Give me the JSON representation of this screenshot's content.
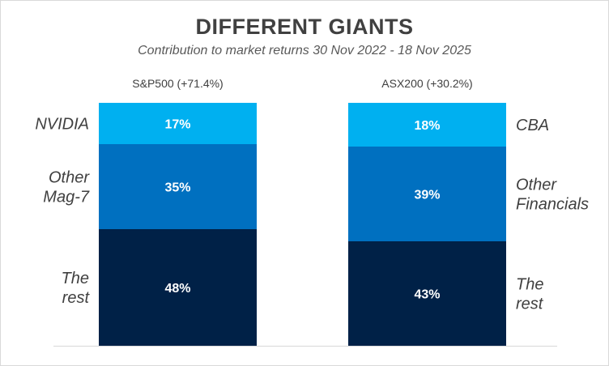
{
  "chart_data": {
    "type": "bar",
    "stacked": true,
    "percent": true,
    "title": "DIFFERENT GIANTS",
    "subtitle": "Contribution to market returns 30 Nov 2022 - 18 Nov 2025",
    "grid": false,
    "legend": "none",
    "bars": [
      {
        "label": "S&P500 (+71.4%)",
        "segments": [
          {
            "name": "NVIDIA",
            "name_lines": [
              "NVIDIA"
            ],
            "value": 17,
            "value_label": "17%",
            "color": "#00b0f0"
          },
          {
            "name": "Other Mag-7",
            "name_lines": [
              "Other",
              "Mag-7"
            ],
            "value": 35,
            "value_label": "35%",
            "color": "#0070c0"
          },
          {
            "name": "The rest",
            "name_lines": [
              "The",
              "rest"
            ],
            "value": 48,
            "value_label": "48%",
            "color": "#002147"
          }
        ]
      },
      {
        "label": "ASX200 (+30.2%)",
        "segments": [
          {
            "name": "CBA",
            "name_lines": [
              "CBA"
            ],
            "value": 18,
            "value_label": "18%",
            "color": "#00b0f0"
          },
          {
            "name": "Other Financials",
            "name_lines": [
              "Other",
              "Financials"
            ],
            "value": 39,
            "value_label": "39%",
            "color": "#0070c0"
          },
          {
            "name": "The rest",
            "name_lines": [
              "The",
              "rest"
            ],
            "value": 43,
            "value_label": "43%",
            "color": "#002147"
          }
        ]
      }
    ]
  }
}
